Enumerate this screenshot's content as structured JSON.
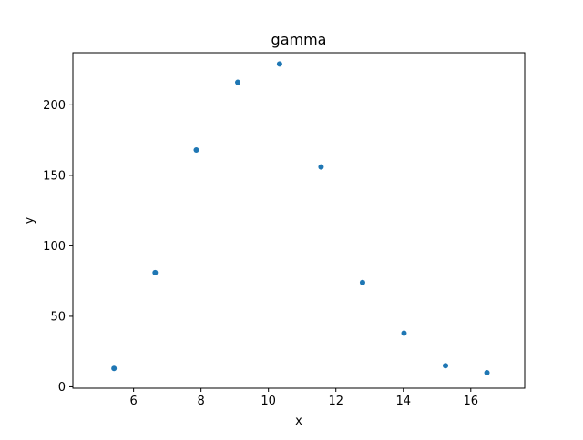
{
  "chart_data": {
    "type": "scatter",
    "title": "gamma",
    "xlabel": "x",
    "ylabel": "y",
    "xlim": [
      4.2,
      17.6
    ],
    "ylim": [
      -1,
      237
    ],
    "xticks": [
      6,
      8,
      10,
      12,
      14,
      16
    ],
    "yticks": [
      0,
      50,
      100,
      150,
      200
    ],
    "grid": false,
    "legend": "none",
    "marker_color": "#1f77b4",
    "series": [
      {
        "x": [
          5.42,
          6.64,
          7.86,
          9.09,
          10.33,
          11.56,
          12.79,
          14.02,
          15.25,
          16.48
        ],
        "y": [
          13,
          81,
          168,
          216,
          229,
          156,
          74,
          38,
          15,
          10
        ]
      }
    ]
  }
}
